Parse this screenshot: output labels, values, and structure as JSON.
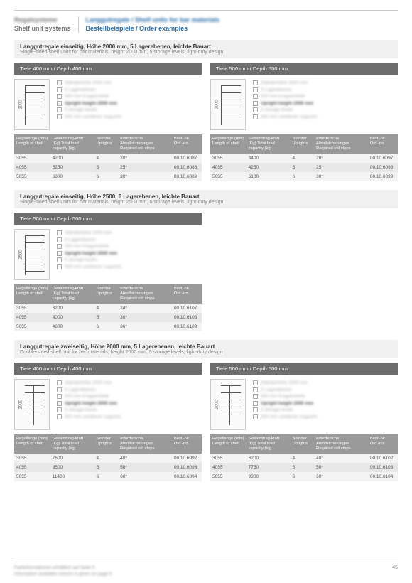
{
  "header": {
    "left_de": "Regalsysteme",
    "left_en": "Shelf unit systems",
    "right_de": "Langgutregale / Shelf units for bar materials",
    "right_en": "Bestellbeispiele / Order examples"
  },
  "columns": [
    "Regallänge (mm) Length of shelf",
    "Gesamttrag-kraft (Kg) Total load capacity (kg)",
    "Ständer Uprights",
    "erforderliche Abrollsicherungen Required roll stops",
    "Best.-Nr. Ord.-no."
  ],
  "speclist": [
    "Ständerhöhe 2000 mm",
    "5 Lagerebenen",
    "500 mm Kragarmtiefe",
    "Upright height 2000 mm",
    "5 storage levels",
    "500 mm cantilever supports"
  ],
  "sec1": {
    "title_de": "Langgutregale einseitig, Höhe 2000 mm, 5 Lagerebenen, leichte Bauart",
    "title_en": "Single-sided shelf units for bar materials, height 2000 mm, 5 storage levels, light-duty design",
    "dim": "2000",
    "depth400_label": "Tiefe 400 mm / Depth 400 mm",
    "depth500_label": "Tiefe 500 mm / Depth 500 mm",
    "t400": [
      [
        "3055",
        "4200",
        "4",
        "20*",
        "00.10.6087"
      ],
      [
        "4055",
        "5250",
        "5",
        "25*",
        "00.10.6088"
      ],
      [
        "5055",
        "6300",
        "6",
        "30*",
        "00.10.6089"
      ]
    ],
    "t500": [
      [
        "3055",
        "3400",
        "4",
        "20*",
        "00.10.6097"
      ],
      [
        "4055",
        "4250",
        "5",
        "25*",
        "00.10.6098"
      ],
      [
        "5055",
        "5100",
        "6",
        "30*",
        "00.10.6099"
      ]
    ]
  },
  "sec2": {
    "title_de": "Langgutregale einseitig, Höhe 2500, 6 Lagerebenen, leichte Bauart",
    "title_en": "Single-sided shelf units for bar materials, height 2500 mm, 6 storage levels, light-duty design",
    "dim": "2500",
    "depth500_label": "Tiefe 500 mm / Depth 500 mm",
    "t500": [
      [
        "3055",
        "3200",
        "4",
        "24*",
        "00.10.6107"
      ],
      [
        "4055",
        "4000",
        "5",
        "30*",
        "00.10.6108"
      ],
      [
        "5055",
        "4800",
        "6",
        "36*",
        "00.10.6109"
      ]
    ]
  },
  "sec3": {
    "title_de": "Langgutregale zweiseitig, Höhe 2000 mm, 5 Lagerebenen, leichte Bauart",
    "title_en": "Double-sided shelf unit for bar materials, height 2000 mm, 5 storage levels, light-duty design",
    "dim": "2000",
    "depth400_label": "Tiefe 400 mm / Depth 400 mm",
    "depth500_label": "Tiefe 500 mm / Depth 500 mm",
    "t400": [
      [
        "3055",
        "7600",
        "4",
        "40*",
        "00.10.6092"
      ],
      [
        "4055",
        "9500",
        "5",
        "50*",
        "00.10.6093"
      ],
      [
        "5055",
        "11400",
        "6",
        "60*",
        "00.10.6094"
      ]
    ],
    "t500": [
      [
        "3055",
        "6200",
        "4",
        "40*",
        "00.10.6102"
      ],
      [
        "4055",
        "7750",
        "5",
        "50*",
        "00.10.6103"
      ],
      [
        "5055",
        "9300",
        "6",
        "60*",
        "00.10.6104"
      ]
    ]
  },
  "footer": {
    "line1": "Farbinformationen erhältlich auf Seite 5",
    "line2": "Information available colours is given on page 5",
    "page": "45"
  }
}
